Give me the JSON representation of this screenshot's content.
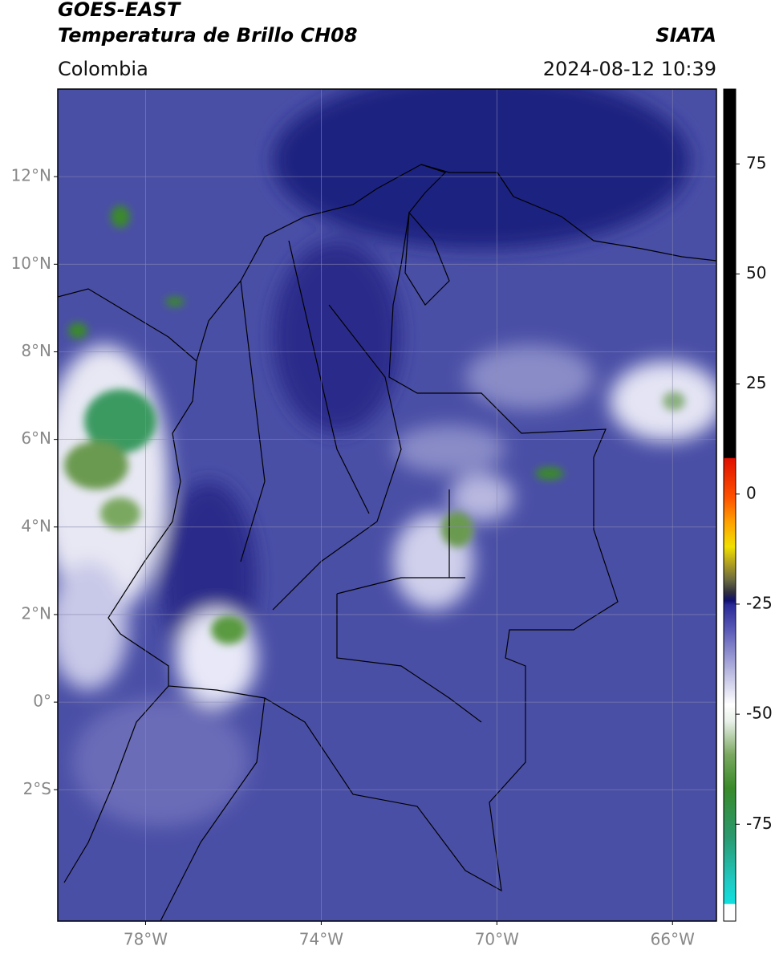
{
  "header": {
    "title_1": "GOES-EAST",
    "title_2": "Temperatura de Brillo CH08",
    "source": "SIATA",
    "region": "Colombia",
    "datetime": "2024-08-12 10:39"
  },
  "map": {
    "lon_range": [
      -80,
      -65
    ],
    "lat_range": [
      -5,
      14
    ],
    "lon_ticks": [
      {
        "value": -78,
        "label": "78°W"
      },
      {
        "value": -74,
        "label": "74°W"
      },
      {
        "value": -70,
        "label": "70°W"
      },
      {
        "value": -66,
        "label": "66°W"
      }
    ],
    "lat_ticks": [
      {
        "value": 12,
        "label": "12°N"
      },
      {
        "value": 10,
        "label": "10°N"
      },
      {
        "value": 8,
        "label": "8°N"
      },
      {
        "value": 6,
        "label": "6°N"
      },
      {
        "value": 4,
        "label": "4°N"
      },
      {
        "value": 2,
        "label": "2°N"
      },
      {
        "value": 0,
        "label": "0°"
      },
      {
        "value": -2,
        "label": "2°S"
      }
    ],
    "grid": true
  },
  "colorbar": {
    "range": [
      -97,
      92
    ],
    "ticks": [
      75,
      50,
      25,
      0,
      -25,
      -50,
      -75
    ]
  }
}
